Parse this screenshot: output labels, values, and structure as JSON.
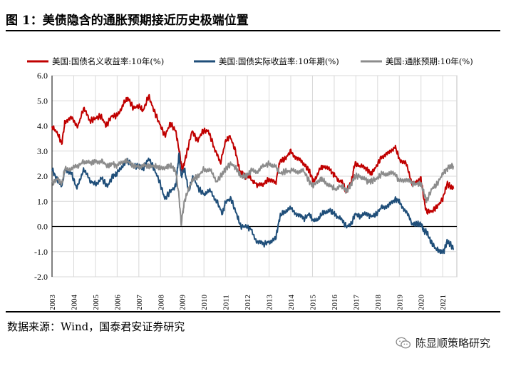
{
  "figure": {
    "title": "图 1：美债隐含的通胀预期接近历史极端位置",
    "source": "数据来源：Wind，国泰君安证券研究",
    "watermark": "陈显顺策略研究",
    "watermark_icon": "wechat-icon"
  },
  "chart_data": {
    "type": "line",
    "title": "",
    "xlabel": "",
    "ylabel": "",
    "ylim": [
      -2.0,
      6.0
    ],
    "yticks": [
      "6.0",
      "5.0",
      "4.0",
      "3.0",
      "2.0",
      "1.0",
      "0.0",
      "-1.0",
      "-2.0"
    ],
    "xticks": [
      "2003",
      "2004",
      "2005",
      "2006",
      "2007",
      "2008",
      "2009",
      "2010",
      "2011",
      "2012",
      "2013",
      "2014",
      "2015",
      "2016",
      "2017",
      "2018",
      "2019",
      "2020",
      "2021"
    ],
    "xlim": [
      2003.0,
      2021.65
    ],
    "grid": true,
    "legend_position": "top",
    "series": [
      {
        "name": "美国:国债名义收益率:10年(%)",
        "color": "#c00000",
        "points": [
          [
            2003.0,
            4.0
          ],
          [
            2003.25,
            3.7
          ],
          [
            2003.45,
            3.3
          ],
          [
            2003.6,
            4.2
          ],
          [
            2003.9,
            4.3
          ],
          [
            2004.2,
            4.0
          ],
          [
            2004.45,
            4.7
          ],
          [
            2004.75,
            4.2
          ],
          [
            2005.0,
            4.3
          ],
          [
            2005.25,
            4.4
          ],
          [
            2005.5,
            4.0
          ],
          [
            2005.75,
            4.4
          ],
          [
            2006.0,
            4.4
          ],
          [
            2006.3,
            4.9
          ],
          [
            2006.5,
            5.1
          ],
          [
            2006.75,
            4.7
          ],
          [
            2007.0,
            4.8
          ],
          [
            2007.2,
            4.6
          ],
          [
            2007.45,
            5.2
          ],
          [
            2007.7,
            4.6
          ],
          [
            2007.95,
            4.1
          ],
          [
            2008.2,
            3.6
          ],
          [
            2008.45,
            4.1
          ],
          [
            2008.7,
            3.8
          ],
          [
            2008.9,
            2.8
          ],
          [
            2009.0,
            2.2
          ],
          [
            2009.2,
            2.9
          ],
          [
            2009.45,
            3.8
          ],
          [
            2009.7,
            3.4
          ],
          [
            2009.95,
            3.8
          ],
          [
            2010.2,
            3.8
          ],
          [
            2010.45,
            3.2
          ],
          [
            2010.75,
            2.5
          ],
          [
            2011.0,
            3.4
          ],
          [
            2011.2,
            3.6
          ],
          [
            2011.45,
            3.0
          ],
          [
            2011.65,
            2.2
          ],
          [
            2011.9,
            2.0
          ],
          [
            2012.1,
            2.0
          ],
          [
            2012.45,
            1.6
          ],
          [
            2012.75,
            1.7
          ],
          [
            2013.0,
            1.9
          ],
          [
            2013.3,
            1.7
          ],
          [
            2013.5,
            2.6
          ],
          [
            2013.75,
            2.7
          ],
          [
            2014.0,
            3.0
          ],
          [
            2014.3,
            2.7
          ],
          [
            2014.6,
            2.5
          ],
          [
            2014.85,
            2.2
          ],
          [
            2015.05,
            1.8
          ],
          [
            2015.35,
            2.3
          ],
          [
            2015.55,
            2.4
          ],
          [
            2015.85,
            2.2
          ],
          [
            2016.05,
            2.0
          ],
          [
            2016.4,
            1.7
          ],
          [
            2016.55,
            1.4
          ],
          [
            2016.8,
            1.8
          ],
          [
            2016.95,
            2.5
          ],
          [
            2017.2,
            2.4
          ],
          [
            2017.5,
            2.3
          ],
          [
            2017.7,
            2.1
          ],
          [
            2017.95,
            2.4
          ],
          [
            2018.2,
            2.8
          ],
          [
            2018.5,
            2.9
          ],
          [
            2018.8,
            3.2
          ],
          [
            2019.0,
            2.7
          ],
          [
            2019.3,
            2.5
          ],
          [
            2019.6,
            1.7
          ],
          [
            2019.85,
            1.8
          ],
          [
            2020.0,
            1.9
          ],
          [
            2020.15,
            1.0
          ],
          [
            2020.25,
            0.6
          ],
          [
            2020.5,
            0.6
          ],
          [
            2020.75,
            0.8
          ],
          [
            2021.0,
            1.1
          ],
          [
            2021.2,
            1.7
          ],
          [
            2021.35,
            1.6
          ],
          [
            2021.5,
            1.5
          ]
        ]
      },
      {
        "name": "美国:国债实际收益率:10年期(%)",
        "color": "#1f4e79",
        "points": [
          [
            2003.0,
            2.3
          ],
          [
            2003.2,
            1.9
          ],
          [
            2003.45,
            1.6
          ],
          [
            2003.6,
            2.3
          ],
          [
            2003.9,
            2.1
          ],
          [
            2004.15,
            1.5
          ],
          [
            2004.45,
            2.3
          ],
          [
            2004.75,
            1.8
          ],
          [
            2005.0,
            1.7
          ],
          [
            2005.3,
            1.9
          ],
          [
            2005.55,
            1.6
          ],
          [
            2005.8,
            2.0
          ],
          [
            2006.0,
            2.1
          ],
          [
            2006.3,
            2.5
          ],
          [
            2006.5,
            2.6
          ],
          [
            2006.75,
            2.4
          ],
          [
            2007.0,
            2.4
          ],
          [
            2007.2,
            2.3
          ],
          [
            2007.45,
            2.7
          ],
          [
            2007.7,
            2.3
          ],
          [
            2007.95,
            1.8
          ],
          [
            2008.2,
            1.1
          ],
          [
            2008.45,
            1.4
          ],
          [
            2008.7,
            1.6
          ],
          [
            2008.85,
            2.9
          ],
          [
            2008.95,
            2.0
          ],
          [
            2009.1,
            2.3
          ],
          [
            2009.3,
            1.4
          ],
          [
            2009.5,
            2.0
          ],
          [
            2009.75,
            1.5
          ],
          [
            2010.0,
            1.3
          ],
          [
            2010.3,
            1.4
          ],
          [
            2010.6,
            1.0
          ],
          [
            2010.85,
            0.5
          ],
          [
            2011.0,
            1.0
          ],
          [
            2011.25,
            1.1
          ],
          [
            2011.5,
            0.5
          ],
          [
            2011.7,
            0.0
          ],
          [
            2011.95,
            0.0
          ],
          [
            2012.15,
            -0.1
          ],
          [
            2012.45,
            -0.6
          ],
          [
            2012.75,
            -0.7
          ],
          [
            2013.0,
            -0.6
          ],
          [
            2013.3,
            -0.5
          ],
          [
            2013.5,
            0.4
          ],
          [
            2013.7,
            0.6
          ],
          [
            2014.0,
            0.7
          ],
          [
            2014.3,
            0.5
          ],
          [
            2014.6,
            0.3
          ],
          [
            2014.85,
            0.5
          ],
          [
            2015.05,
            0.2
          ],
          [
            2015.35,
            0.4
          ],
          [
            2015.55,
            0.6
          ],
          [
            2015.85,
            0.6
          ],
          [
            2016.05,
            0.5
          ],
          [
            2016.4,
            0.2
          ],
          [
            2016.55,
            0.0
          ],
          [
            2016.8,
            0.1
          ],
          [
            2016.95,
            0.5
          ],
          [
            2017.2,
            0.4
          ],
          [
            2017.5,
            0.5
          ],
          [
            2017.7,
            0.4
          ],
          [
            2017.95,
            0.5
          ],
          [
            2018.2,
            0.8
          ],
          [
            2018.5,
            0.8
          ],
          [
            2018.8,
            1.1
          ],
          [
            2019.0,
            1.0
          ],
          [
            2019.3,
            0.6
          ],
          [
            2019.6,
            0.1
          ],
          [
            2019.85,
            0.1
          ],
          [
            2020.0,
            0.1
          ],
          [
            2020.15,
            -0.2
          ],
          [
            2020.25,
            -0.2
          ],
          [
            2020.45,
            -0.6
          ],
          [
            2020.7,
            -0.9
          ],
          [
            2020.9,
            -1.0
          ],
          [
            2021.05,
            -1.0
          ],
          [
            2021.2,
            -0.6
          ],
          [
            2021.35,
            -0.7
          ],
          [
            2021.5,
            -0.9
          ]
        ]
      },
      {
        "name": "美国:通胀预期:10年(%)",
        "color": "#8c8c8c",
        "points": [
          [
            2003.0,
            1.7
          ],
          [
            2003.25,
            1.9
          ],
          [
            2003.45,
            1.7
          ],
          [
            2003.6,
            2.3
          ],
          [
            2003.9,
            2.3
          ],
          [
            2004.2,
            2.4
          ],
          [
            2004.45,
            2.6
          ],
          [
            2004.75,
            2.5
          ],
          [
            2005.0,
            2.6
          ],
          [
            2005.3,
            2.6
          ],
          [
            2005.55,
            2.4
          ],
          [
            2005.8,
            2.5
          ],
          [
            2006.0,
            2.4
          ],
          [
            2006.3,
            2.6
          ],
          [
            2006.5,
            2.6
          ],
          [
            2006.75,
            2.4
          ],
          [
            2007.0,
            2.4
          ],
          [
            2007.3,
            2.4
          ],
          [
            2007.55,
            2.4
          ],
          [
            2007.8,
            2.4
          ],
          [
            2008.0,
            2.3
          ],
          [
            2008.3,
            2.4
          ],
          [
            2008.5,
            2.4
          ],
          [
            2008.7,
            2.2
          ],
          [
            2008.85,
            1.2
          ],
          [
            2008.95,
            0.1
          ],
          [
            2009.1,
            1.0
          ],
          [
            2009.3,
            1.5
          ],
          [
            2009.5,
            1.9
          ],
          [
            2009.75,
            2.0
          ],
          [
            2010.0,
            2.3
          ],
          [
            2010.3,
            2.2
          ],
          [
            2010.6,
            1.8
          ],
          [
            2010.85,
            2.1
          ],
          [
            2011.0,
            2.3
          ],
          [
            2011.25,
            2.5
          ],
          [
            2011.5,
            2.3
          ],
          [
            2011.7,
            2.0
          ],
          [
            2011.95,
            2.0
          ],
          [
            2012.15,
            2.2
          ],
          [
            2012.45,
            2.2
          ],
          [
            2012.75,
            2.4
          ],
          [
            2013.0,
            2.5
          ],
          [
            2013.3,
            2.4
          ],
          [
            2013.5,
            2.1
          ],
          [
            2013.75,
            2.2
          ],
          [
            2014.0,
            2.2
          ],
          [
            2014.3,
            2.2
          ],
          [
            2014.6,
            2.2
          ],
          [
            2014.85,
            1.8
          ],
          [
            2015.05,
            1.6
          ],
          [
            2015.35,
            1.9
          ],
          [
            2015.55,
            1.8
          ],
          [
            2015.85,
            1.6
          ],
          [
            2016.05,
            1.5
          ],
          [
            2016.4,
            1.6
          ],
          [
            2016.55,
            1.4
          ],
          [
            2016.8,
            1.7
          ],
          [
            2016.95,
            2.0
          ],
          [
            2017.2,
            2.0
          ],
          [
            2017.5,
            1.8
          ],
          [
            2017.7,
            1.8
          ],
          [
            2017.95,
            1.9
          ],
          [
            2018.2,
            2.1
          ],
          [
            2018.5,
            2.1
          ],
          [
            2018.8,
            2.1
          ],
          [
            2019.0,
            1.8
          ],
          [
            2019.3,
            1.9
          ],
          [
            2019.6,
            1.7
          ],
          [
            2019.85,
            1.7
          ],
          [
            2020.0,
            1.7
          ],
          [
            2020.15,
            1.3
          ],
          [
            2020.25,
            1.0
          ],
          [
            2020.5,
            1.5
          ],
          [
            2020.75,
            1.7
          ],
          [
            2021.0,
            2.1
          ],
          [
            2021.2,
            2.3
          ],
          [
            2021.35,
            2.4
          ],
          [
            2021.5,
            2.4
          ]
        ]
      }
    ]
  }
}
